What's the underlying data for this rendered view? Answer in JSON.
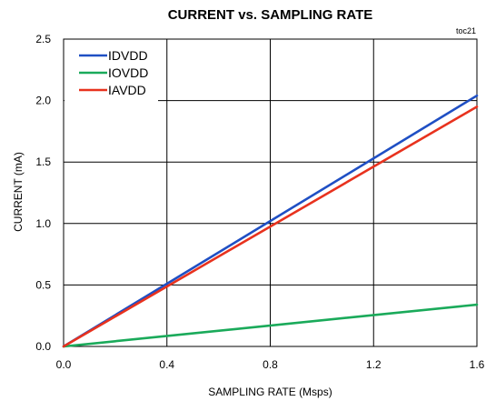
{
  "chart_data": {
    "type": "line",
    "title": "CURRENT vs. SAMPLING RATE",
    "code": "toc21",
    "xlabel": "SAMPLING RATE (Msps)",
    "ylabel": "CURRENT (mA)",
    "xlim": [
      0,
      1.6
    ],
    "ylim": [
      0,
      2.5
    ],
    "xticks": [
      "0.0",
      "0.4",
      "0.8",
      "1.2",
      "1.6"
    ],
    "yticks": [
      "0.0",
      "0.5",
      "1.0",
      "1.5",
      "2.0",
      "2.5"
    ],
    "grid": true,
    "legend_position": "top-left",
    "series": [
      {
        "name": "IDVDD",
        "color": "#1f4fc4",
        "x": [
          0,
          1.6
        ],
        "y": [
          0,
          2.04
        ]
      },
      {
        "name": "IOVDD",
        "color": "#1aaa5a",
        "x": [
          0,
          1.6
        ],
        "y": [
          0,
          0.34
        ]
      },
      {
        "name": "IAVDD",
        "color": "#e8321e",
        "x": [
          0,
          1.6
        ],
        "y": [
          0,
          1.95
        ]
      }
    ]
  }
}
